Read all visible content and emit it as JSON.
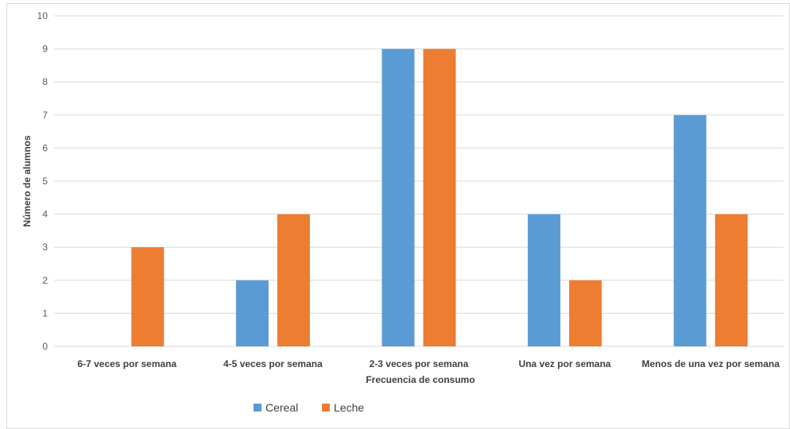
{
  "chart_data": {
    "type": "bar",
    "title": "",
    "xlabel": "Frecuencia de consumo",
    "ylabel": "Número de alumnos",
    "ylim": [
      0,
      10
    ],
    "yticks": [
      0,
      1,
      2,
      3,
      4,
      5,
      6,
      7,
      8,
      9,
      10
    ],
    "grid": true,
    "legend_position": "bottom-left",
    "categories": [
      "6-7 veces por semana",
      "4-5 veces por semana",
      "2-3 veces por semana",
      "Una vez por semana",
      "Menos de una vez por semana"
    ],
    "series": [
      {
        "name": "Cereal",
        "color": "#5b9bd5",
        "values": [
          0,
          2,
          9,
          4,
          7
        ]
      },
      {
        "name": "Leche",
        "color": "#ed7d31",
        "values": [
          3,
          4,
          9,
          2,
          4
        ]
      }
    ]
  }
}
